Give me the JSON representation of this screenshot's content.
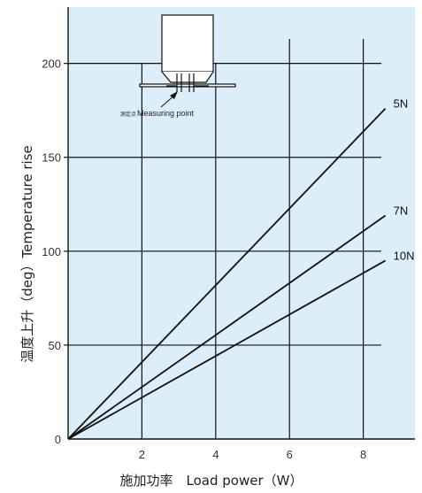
{
  "chart_data": {
    "type": "line",
    "title": "",
    "xlabel": "施加功率　Load power（W）",
    "ylabel": "温度上升（deg）Temperature rise",
    "xlim": [
      0,
      9.4
    ],
    "ylim": [
      0,
      230
    ],
    "x_ticks": [
      2,
      4,
      6,
      8
    ],
    "x_tick_labels": [
      "2",
      "4",
      "6",
      "8"
    ],
    "y_ticks": [
      0,
      50,
      100,
      150,
      200
    ],
    "y_tick_labels": [
      "0",
      "50",
      "100",
      "150",
      "200"
    ],
    "grid": true,
    "series": [
      {
        "name": "5N",
        "x": [
          0,
          8.6
        ],
        "y": [
          0,
          176
        ]
      },
      {
        "name": "7N",
        "x": [
          0,
          8.6
        ],
        "y": [
          0,
          119
        ]
      },
      {
        "name": "10N",
        "x": [
          0,
          8.6
        ],
        "y": [
          0,
          95
        ]
      }
    ],
    "inset": {
      "label_jp": "測定点",
      "label_en": "Measuring point"
    },
    "colors": {
      "plot_background": "#dbeef9",
      "line": "#111111",
      "grid": "#111111"
    }
  }
}
